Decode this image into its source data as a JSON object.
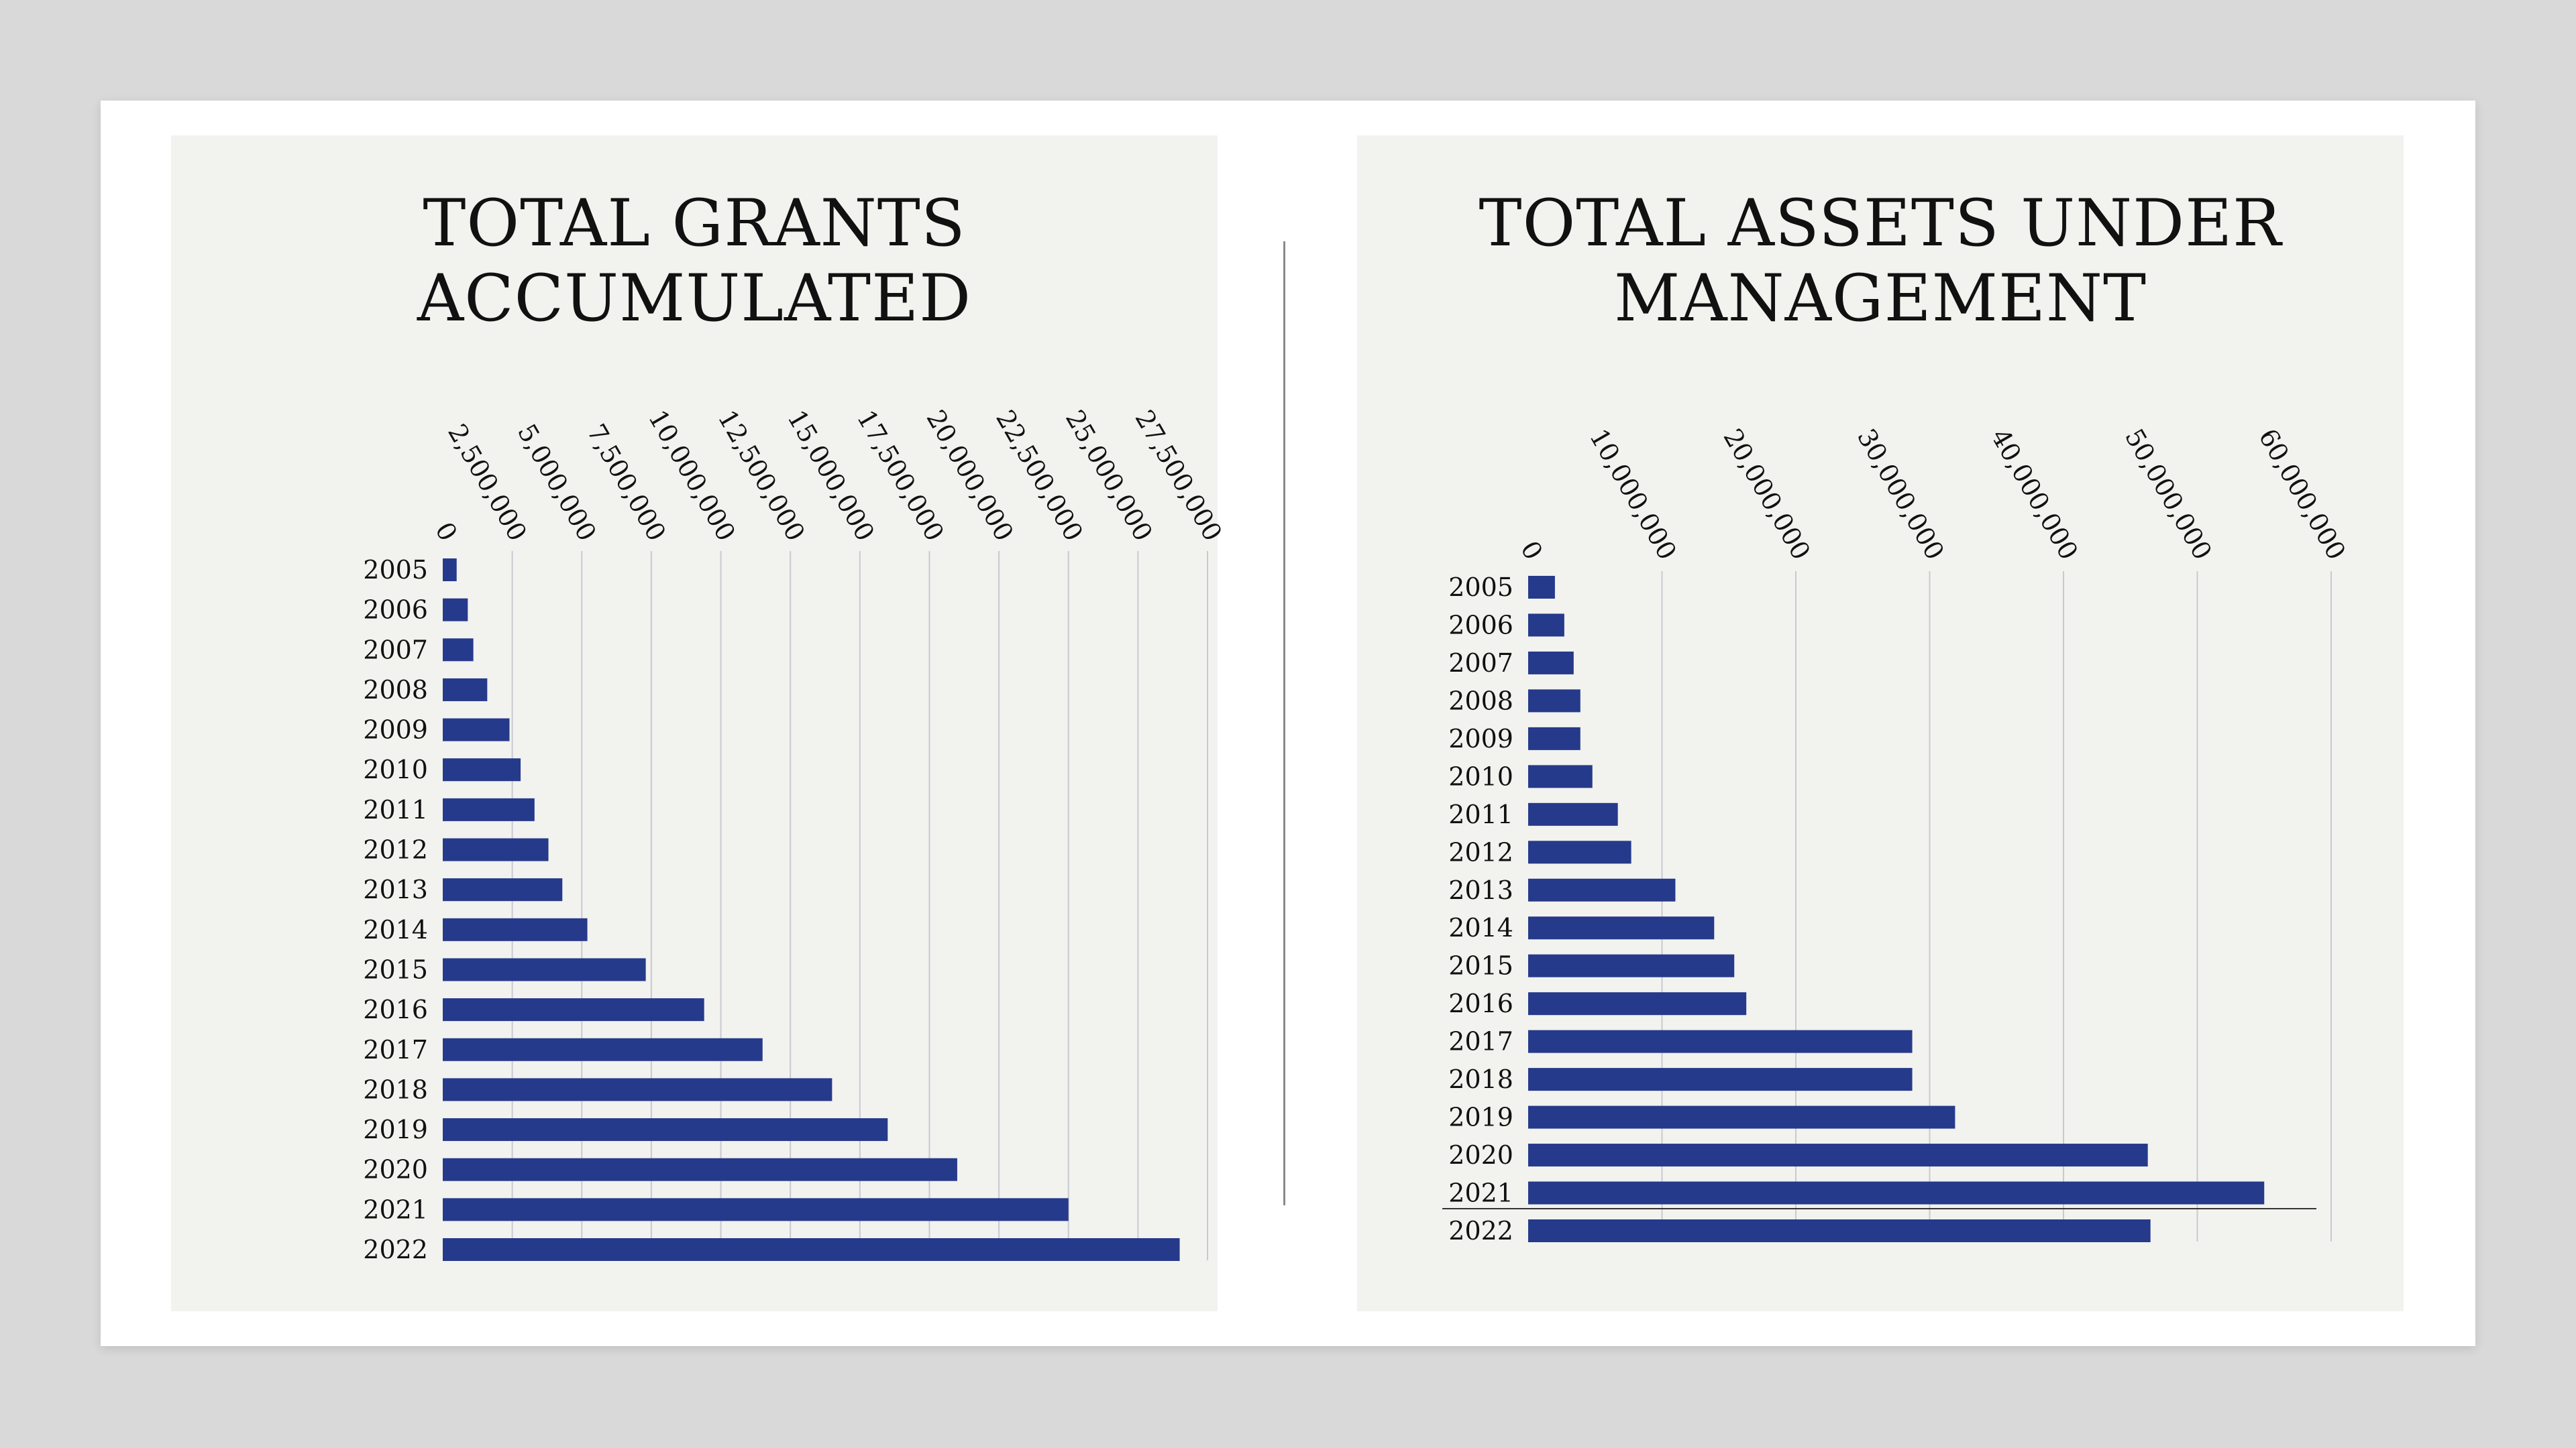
{
  "charts": [
    {
      "title_line1": "TOTAL GRANTS",
      "title_line2": "ACCUMULATED"
    },
    {
      "title_line1": "TOTAL ASSETS UNDER",
      "title_line2": "MANAGEMENT"
    }
  ],
  "colors": {
    "bar": "#263a8b",
    "grid": "#c9c9d3",
    "background": "#f2f2ef"
  },
  "chart_data": [
    {
      "type": "bar",
      "orientation": "horizontal",
      "title": "TOTAL GRANTS ACCUMULATED",
      "categories": [
        "2005",
        "2006",
        "2007",
        "2008",
        "2009",
        "2010",
        "2011",
        "2012",
        "2013",
        "2014",
        "2015",
        "2016",
        "2017",
        "2018",
        "2019",
        "2020",
        "2021",
        "2022"
      ],
      "values": [
        500000,
        900000,
        1100000,
        1600000,
        2400000,
        2800000,
        3300000,
        3800000,
        4300000,
        5200000,
        7300000,
        9400000,
        11500000,
        14000000,
        16000000,
        18500000,
        22500000,
        26500000
      ],
      "xlim": [
        0,
        27500000
      ],
      "ticks": [
        0,
        2500000,
        5000000,
        7500000,
        10000000,
        12500000,
        15000000,
        17500000,
        20000000,
        22500000,
        25000000,
        27500000
      ],
      "tick_labels": [
        "0",
        "2,500,000",
        "5,000,000",
        "7,500,000",
        "10,000,000",
        "12,500,000",
        "15,000,000",
        "17,500,000",
        "20,000,000",
        "22,500,000",
        "25,000,000",
        "27,500,000"
      ],
      "tick_label_rotation": "diagonal",
      "axis_position": "top",
      "grid": true,
      "legend": "none"
    },
    {
      "type": "bar",
      "orientation": "horizontal",
      "title": "TOTAL ASSETS UNDER MANAGEMENT",
      "categories": [
        "2005",
        "2006",
        "2007",
        "2008",
        "2009",
        "2010",
        "2011",
        "2012",
        "2013",
        "2014",
        "2015",
        "2016",
        "2017",
        "2018",
        "2019",
        "2020",
        "2021",
        "2022"
      ],
      "values": [
        2000000,
        2700000,
        3400000,
        3900000,
        3900000,
        4800000,
        6700000,
        7700000,
        11000000,
        13900000,
        15400000,
        16300000,
        28700000,
        28700000,
        31900000,
        46300000,
        55000000,
        46500000
      ],
      "xlim": [
        0,
        60000000
      ],
      "ticks": [
        0,
        10000000,
        20000000,
        30000000,
        40000000,
        50000000,
        60000000
      ],
      "tick_labels": [
        "0",
        "10,000,000",
        "20,000,000",
        "30,000,000",
        "40,000,000",
        "50,000,000",
        "60,000,000"
      ],
      "tick_label_rotation": "diagonal",
      "axis_position": "top",
      "grid": true,
      "legend": "none"
    }
  ]
}
